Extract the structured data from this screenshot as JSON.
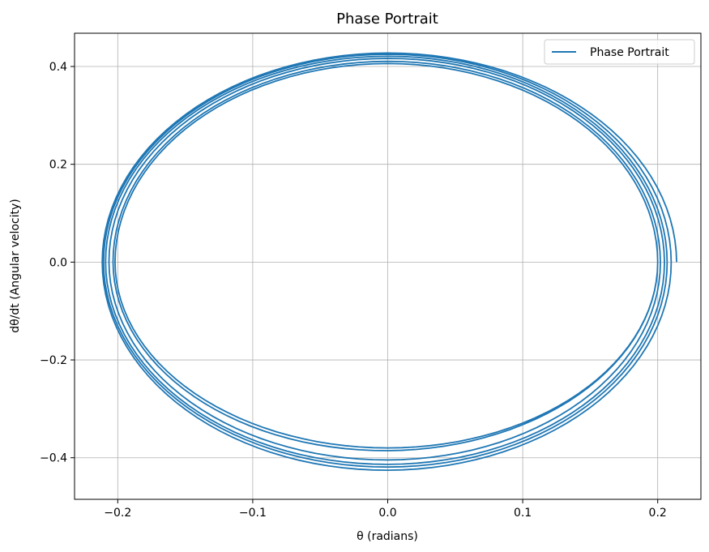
{
  "chart_data": {
    "type": "line",
    "title": "Phase Portrait",
    "xlabel": "θ (radians)",
    "ylabel": "dθ/dt (Angular velocity)",
    "xlim": [
      -0.232,
      0.232
    ],
    "ylim": [
      -0.485,
      0.468
    ],
    "xticks": [
      -0.2,
      -0.1,
      0.0,
      0.1,
      0.2
    ],
    "xtick_labels": [
      "−0.2",
      "−0.1",
      "0.0",
      "0.1",
      "0.2"
    ],
    "yticks": [
      -0.4,
      -0.2,
      0.0,
      0.2,
      0.4
    ],
    "ytick_labels": [
      "−0.4",
      "−0.2",
      "0.0",
      "0.2",
      "0.4"
    ],
    "grid": true,
    "legend_position": "top-right",
    "series_color": "#1f77b4",
    "series": [
      {
        "name": "Phase Portrait",
        "kind": "spiral",
        "loops": 6,
        "loop_params": [
          {
            "theta_pos": 0.214,
            "theta_neg": -0.212,
            "omega_pos": 0.428,
            "omega_neg": -0.436
          },
          {
            "theta_pos": 0.21,
            "theta_neg": -0.211,
            "omega_pos": 0.426,
            "omega_neg": -0.422
          },
          {
            "theta_pos": 0.207,
            "theta_neg": -0.21,
            "omega_pos": 0.422,
            "omega_neg": -0.418
          },
          {
            "theta_pos": 0.205,
            "theta_neg": -0.208,
            "omega_pos": 0.418,
            "omega_neg": -0.412
          },
          {
            "theta_pos": 0.202,
            "theta_neg": -0.205,
            "omega_pos": 0.412,
            "omega_neg": -0.402
          },
          {
            "theta_pos": 0.2,
            "theta_neg": -0.202,
            "omega_pos": 0.406,
            "omega_neg": -0.38
          }
        ]
      }
    ]
  }
}
